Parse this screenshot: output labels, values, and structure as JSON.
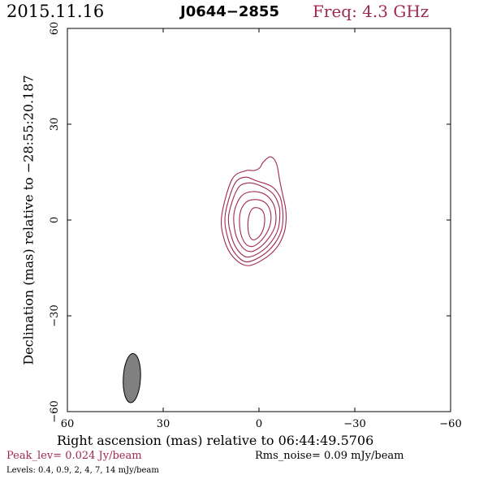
{
  "header": {
    "date": "2015.11.16",
    "source": "J0644−2855",
    "freq": "Freq: 4.3 GHz"
  },
  "footer": {
    "peak": "Peak_lev=  0.024 Jy/beam",
    "rms": "Rms_noise= 0.09 mJy/beam",
    "levels": "Levels: 0.4, 0.9,    2,    4,    7,   14 mJy/beam"
  },
  "colors": {
    "contour": "#a0294e",
    "beam_fill": "#808080",
    "axis": "#000000"
  },
  "chart_data": {
    "type": "contour",
    "xlabel": "Right ascension (mas) relative to 06:44:49.5706",
    "ylabel": "Declination (mas) relative to −28:55:20.187",
    "xlim": [
      60,
      -60
    ],
    "ylim": [
      -60,
      60
    ],
    "xticks": [
      60,
      30,
      0,
      -30,
      -60
    ],
    "yticks": [
      -60,
      -30,
      0,
      30,
      60
    ],
    "xtick_labels": [
      "60",
      "30",
      "0",
      "−30",
      "−60"
    ],
    "ytick_labels": [
      "−60",
      "−30",
      "0",
      "30",
      "60"
    ],
    "contour_levels_mJy": [
      0.4,
      0.9,
      2,
      4,
      7,
      14
    ],
    "peak_Jy_per_beam": 0.024,
    "rms_mJy_per_beam": 0.09,
    "contours": [
      {
        "level": 0.4,
        "points": [
          [
            3.5,
            -14.3
          ],
          [
            -1.7,
            -12.1
          ],
          [
            -5.8,
            -8.3
          ],
          [
            -7.9,
            -3.9
          ],
          [
            -8.5,
            0.2
          ],
          [
            -8.3,
            3.8
          ],
          [
            -7.5,
            7.5
          ],
          [
            -6.5,
            12.3
          ],
          [
            -5.5,
            17.6
          ],
          [
            -3.6,
            19.8
          ],
          [
            -1.3,
            18.1
          ],
          [
            -0.3,
            16.4
          ],
          [
            1.5,
            15.5
          ],
          [
            4.3,
            15.4
          ],
          [
            8.5,
            12.6
          ],
          [
            11.7,
            1.1
          ],
          [
            10.8,
            -6.4
          ],
          [
            7.9,
            -11.8
          ]
        ]
      },
      {
        "level": 0.9,
        "points": [
          [
            3.8,
            -13.1
          ],
          [
            -1.2,
            -11.0
          ],
          [
            -4.9,
            -7.4
          ],
          [
            -7.0,
            -3.3
          ],
          [
            -7.5,
            0.5
          ],
          [
            -7.3,
            4.0
          ],
          [
            -6.5,
            7.4
          ],
          [
            -4.0,
            10.5
          ],
          [
            0.6,
            12.2
          ],
          [
            4.5,
            13.4
          ],
          [
            7.8,
            11.0
          ],
          [
            10.6,
            1.4
          ],
          [
            9.7,
            -5.8
          ],
          [
            7.3,
            -10.7
          ]
        ]
      },
      {
        "level": 2,
        "points": [
          [
            3.6,
            -11.6
          ],
          [
            -0.8,
            -9.8
          ],
          [
            -4.1,
            -6.5
          ],
          [
            -6.0,
            -2.8
          ],
          [
            -6.5,
            0.8
          ],
          [
            -6.3,
            4.3
          ],
          [
            -4.4,
            8.2
          ],
          [
            -0.5,
            10.7
          ],
          [
            3.5,
            11.6
          ],
          [
            6.8,
            9.6
          ],
          [
            9.5,
            1.3
          ],
          [
            8.6,
            -5.2
          ],
          [
            6.6,
            -9.5
          ]
        ]
      },
      {
        "level": 4,
        "points": [
          [
            2.6,
            -9.9
          ],
          [
            -0.6,
            -8.3
          ],
          [
            -3.3,
            -5.3
          ],
          [
            -5.0,
            -2.0
          ],
          [
            -5.3,
            1.4
          ],
          [
            -4.5,
            5.1
          ],
          [
            -1.9,
            8.0
          ],
          [
            2.0,
            8.9
          ],
          [
            5.6,
            7.4
          ],
          [
            7.8,
            2.2
          ],
          [
            7.4,
            -4.1
          ],
          [
            5.3,
            -8.4
          ]
        ]
      },
      {
        "level": 7,
        "points": [
          [
            2.1,
            -8.3
          ],
          [
            -0.3,
            -6.8
          ],
          [
            -2.4,
            -4.1
          ],
          [
            -3.6,
            -1.0
          ],
          [
            -3.6,
            2.5
          ],
          [
            -2.1,
            5.3
          ],
          [
            0.9,
            6.4
          ],
          [
            4.0,
            5.6
          ],
          [
            5.9,
            2.2
          ],
          [
            5.9,
            -3.2
          ],
          [
            4.4,
            -7.2
          ]
        ]
      },
      {
        "level": 14,
        "points": [
          [
            1.4,
            -6.2
          ],
          [
            -0.6,
            -4.5
          ],
          [
            -1.7,
            -1.3
          ],
          [
            -1.5,
            2.1
          ],
          [
            0.0,
            3.7
          ],
          [
            2.1,
            3.5
          ],
          [
            3.3,
            0.6
          ],
          [
            3.4,
            -3.0
          ],
          [
            2.7,
            -5.5
          ]
        ]
      }
    ],
    "beam": {
      "x": 39.8,
      "y": -49.5,
      "major_mas": 15.4,
      "minor_mas": 5.4,
      "pa_deg": 3
    }
  }
}
